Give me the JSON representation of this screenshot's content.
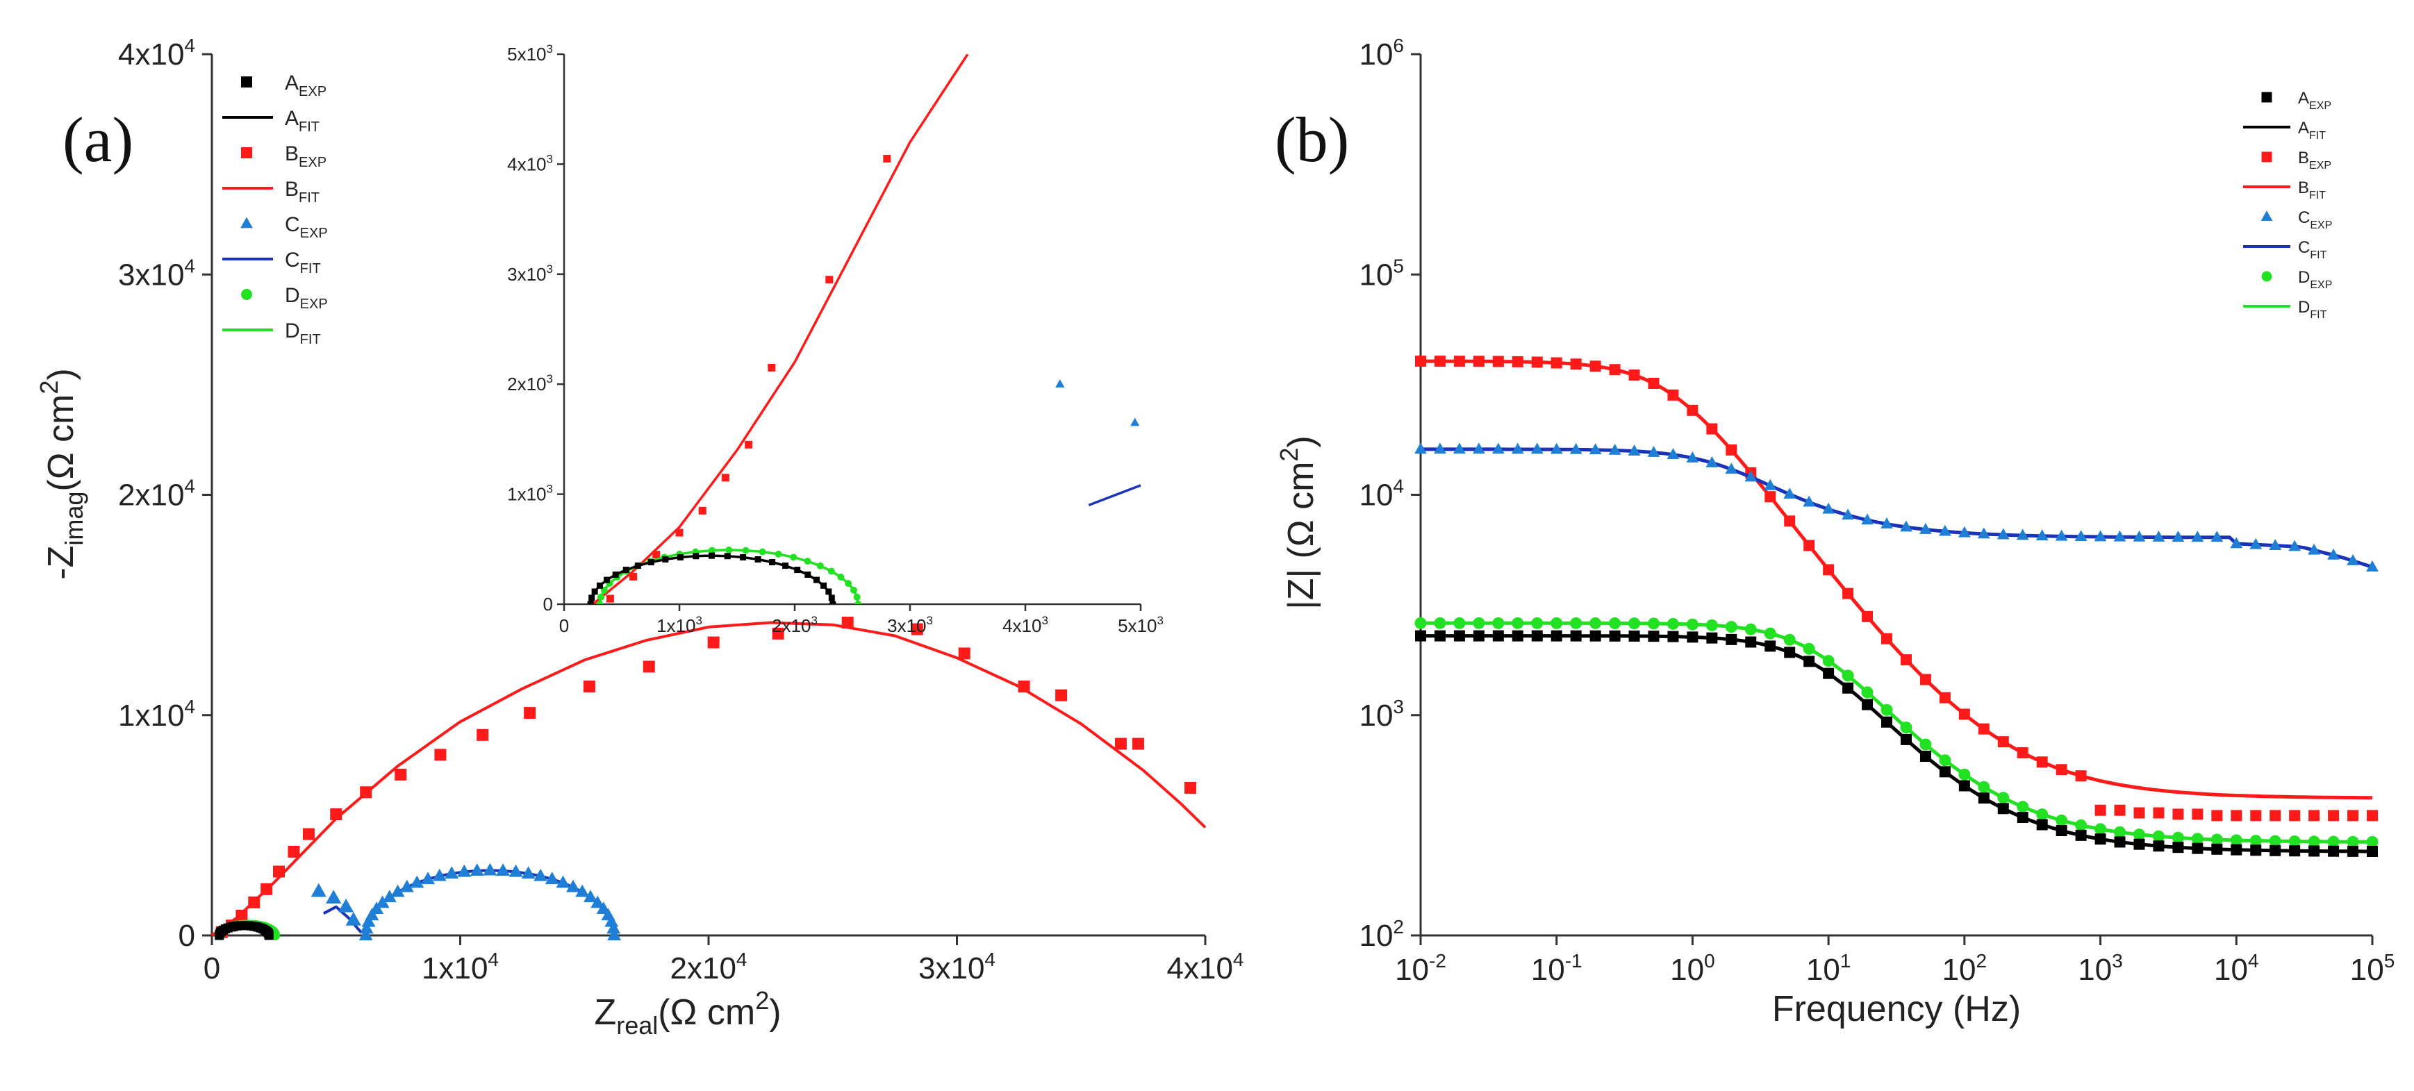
{
  "chart_data": [
    {
      "panel": "(a)",
      "type": "scatter",
      "title": "",
      "xlabel": {
        "base": "Z",
        "sub": "real",
        "rest": "(Ω  cm",
        "sup": "2",
        "close": ")"
      },
      "ylabel": {
        "base": "-Z",
        "sub": "imag",
        "rest": "(Ω  cm",
        "sup": "2",
        "close": ")"
      },
      "xlim": [
        0,
        40000
      ],
      "ylim": [
        0,
        40000
      ],
      "xticks": [
        {
          "v": 0,
          "base": "0",
          "sup": ""
        },
        {
          "v": 10000,
          "base": "1x10",
          "sup": "4"
        },
        {
          "v": 20000,
          "base": "2x10",
          "sup": "4"
        },
        {
          "v": 30000,
          "base": "3x10",
          "sup": "4"
        },
        {
          "v": 40000,
          "base": "4x10",
          "sup": "4"
        }
      ],
      "yticks": [
        {
          "v": 0,
          "base": "0",
          "sup": ""
        },
        {
          "v": 10000,
          "base": "1x10",
          "sup": "4"
        },
        {
          "v": 20000,
          "base": "2x10",
          "sup": "4"
        },
        {
          "v": 30000,
          "base": "3x10",
          "sup": "4"
        },
        {
          "v": 40000,
          "base": "4x10",
          "sup": "4"
        }
      ],
      "legend_position": "top-left",
      "legend": [
        {
          "base": "A",
          "sub": "EXP"
        },
        {
          "base": "A",
          "sub": "FIT"
        },
        {
          "base": "B",
          "sub": "EXP"
        },
        {
          "base": "B",
          "sub": "FIT"
        },
        {
          "base": "C",
          "sub": "EXP"
        },
        {
          "base": "C",
          "sub": "FIT"
        },
        {
          "base": "D",
          "sub": "EXP"
        },
        {
          "base": "D",
          "sub": "FIT"
        }
      ],
      "series": [
        {
          "name": "A",
          "color": "#000000",
          "marker": "square",
          "arc": {
            "center": 1300,
            "radius": 1000,
            "yscale": 0.45,
            "points": 22
          }
        },
        {
          "name": "B",
          "color": "#ff1a1a",
          "marker": "square",
          "exp": [
            [
              400,
              150
            ],
            [
              800,
              450
            ],
            [
              1200,
              900
            ],
            [
              1700,
              1500
            ],
            [
              2200,
              2100
            ],
            [
              2700,
              2900
            ],
            [
              3300,
              3800
            ],
            [
              3900,
              4600
            ],
            [
              5000,
              5500
            ],
            [
              6200,
              6500
            ],
            [
              7600,
              7300
            ],
            [
              9200,
              8200
            ],
            [
              10900,
              9100
            ],
            [
              12800,
              10100
            ],
            [
              15200,
              11300
            ],
            [
              17600,
              12200
            ],
            [
              20200,
              13300
            ],
            [
              22800,
              13700
            ],
            [
              25600,
              14200
            ],
            [
              28400,
              13900
            ],
            [
              30300,
              12800
            ],
            [
              32700,
              11300
            ],
            [
              34200,
              10900
            ],
            [
              36600,
              8700
            ],
            [
              37300,
              8700
            ],
            [
              39400,
              6700
            ]
          ],
          "fit": [
            [
              0,
              0
            ],
            [
              1000,
              800
            ],
            [
              2500,
              2400
            ],
            [
              5000,
              5300
            ],
            [
              7500,
              7700
            ],
            [
              10000,
              9700
            ],
            [
              12500,
              11200
            ],
            [
              15000,
              12500
            ],
            [
              17500,
              13400
            ],
            [
              20000,
              14000
            ],
            [
              22500,
              14200
            ],
            [
              25000,
              14100
            ],
            [
              27500,
              13600
            ],
            [
              30000,
              12600
            ],
            [
              32500,
              11300
            ],
            [
              35000,
              9600
            ],
            [
              37500,
              7500
            ],
            [
              39000,
              6000
            ],
            [
              40000,
              4900
            ]
          ]
        },
        {
          "name": "C",
          "color": "#1f7fd6",
          "marker": "triangle",
          "fitcolor": "#1a33b8",
          "exp": [
            [
              4300,
              2000
            ],
            [
              4900,
              1700
            ],
            [
              5400,
              1300
            ],
            [
              5700,
              700
            ]
          ],
          "fit": [
            [
              4500,
              1000
            ],
            [
              5000,
              1300
            ],
            [
              5500,
              800
            ],
            [
              6000,
              150
            ]
          ],
          "arc": {
            "center": 11200,
            "radius": 5000,
            "yscale": 0.59,
            "points": 30
          }
        },
        {
          "name": "D",
          "color": "#22e022",
          "marker": "circle",
          "fitcolor": "#22e022",
          "arc": {
            "center": 1450,
            "radius": 1100,
            "yscale": 0.45,
            "points": 22
          }
        }
      ],
      "inset": {
        "xlim": [
          0,
          5000
        ],
        "ylim": [
          0,
          5000
        ],
        "xticks": [
          {
            "v": 0,
            "base": "0",
            "sup": ""
          },
          {
            "v": 1000,
            "base": "1x10",
            "sup": "3"
          },
          {
            "v": 2000,
            "base": "2x10",
            "sup": "3"
          },
          {
            "v": 3000,
            "base": "3x10",
            "sup": "3"
          },
          {
            "v": 4000,
            "base": "4x10",
            "sup": "3"
          },
          {
            "v": 5000,
            "base": "5x10",
            "sup": "3"
          }
        ],
        "yticks": [
          {
            "v": 0,
            "base": "0",
            "sup": ""
          },
          {
            "v": 1000,
            "base": "1x10",
            "sup": "3"
          },
          {
            "v": 2000,
            "base": "2x10",
            "sup": "3"
          },
          {
            "v": 3000,
            "base": "3x10",
            "sup": "3"
          },
          {
            "v": 4000,
            "base": "4x10",
            "sup": "3"
          },
          {
            "v": 5000,
            "base": "5x10",
            "sup": "3"
          }
        ],
        "series": [
          {
            "name": "B",
            "color": "#ff1a1a",
            "exp": [
              [
                400,
                50
              ],
              [
                600,
                250
              ],
              [
                800,
                450
              ],
              [
                1000,
                650
              ],
              [
                1200,
                850
              ],
              [
                1400,
                1150
              ],
              [
                1600,
                1450
              ],
              [
                1800,
                2150
              ],
              [
                2300,
                2950
              ],
              [
                2800,
                4050
              ]
            ],
            "fit": [
              [
                250,
                0
              ],
              [
                600,
                300
              ],
              [
                1000,
                700
              ],
              [
                1500,
                1400
              ],
              [
                2000,
                2200
              ],
              [
                2500,
                3200
              ],
              [
                3000,
                4200
              ],
              [
                3500,
                5000
              ]
            ]
          },
          {
            "name": "A",
            "color": "#000000",
            "arc": {
              "center": 1280,
              "radius": 1050,
              "yscale": 0.42,
              "points": 24
            }
          },
          {
            "name": "D",
            "color": "#22e022",
            "arc": {
              "center": 1430,
              "radius": 1120,
              "yscale": 0.44,
              "points": 24
            }
          },
          {
            "name": "C",
            "color": "#1f7fd6",
            "fitcolor": "#1a33b8",
            "exp": [
              [
                4300,
                2000
              ],
              [
                4950,
                1650
              ]
            ],
            "fit": [
              [
                4550,
                900
              ],
              [
                5000,
                1080
              ]
            ]
          }
        ]
      }
    },
    {
      "panel": "(b)",
      "type": "line",
      "title": "",
      "xlabel": "Frequency (Hz)",
      "ylabel": {
        "base": "|Z| (Ω  cm",
        "sup": "2",
        "close": ")"
      },
      "xscale": "log",
      "yscale": "log",
      "xlim": [
        0.01,
        100000
      ],
      "ylim": [
        100,
        1000000
      ],
      "xticks": [
        {
          "v": 0.01,
          "base": "10",
          "sup": "-2"
        },
        {
          "v": 0.1,
          "base": "10",
          "sup": "-1"
        },
        {
          "v": 1,
          "base": "10",
          "sup": "0"
        },
        {
          "v": 10,
          "base": "10",
          "sup": "1"
        },
        {
          "v": 100,
          "base": "10",
          "sup": "2"
        },
        {
          "v": 1000,
          "base": "10",
          "sup": "3"
        },
        {
          "v": 10000,
          "base": "10",
          "sup": "4"
        },
        {
          "v": 100000,
          "base": "10",
          "sup": "5"
        }
      ],
      "yticks": [
        {
          "v": 100,
          "base": "10",
          "sup": "2"
        },
        {
          "v": 1000,
          "base": "10",
          "sup": "3"
        },
        {
          "v": 10000,
          "base": "10",
          "sup": "4"
        },
        {
          "v": 100000,
          "base": "10",
          "sup": "5"
        },
        {
          "v": 1000000,
          "base": "10",
          "sup": "6"
        }
      ],
      "legend_position": "top-right",
      "legend": [
        {
          "base": "A",
          "sub": "EXP"
        },
        {
          "base": "A",
          "sub": "FIT"
        },
        {
          "base": "B",
          "sub": "EXP"
        },
        {
          "base": "B",
          "sub": "FIT"
        },
        {
          "base": "C",
          "sub": "EXP"
        },
        {
          "base": "C",
          "sub": "FIT"
        },
        {
          "base": "D",
          "sub": "EXP"
        },
        {
          "base": "D",
          "sub": "FIT"
        }
      ],
      "series": [
        {
          "name": "A",
          "color": "#000000",
          "fitcolor": "#000000",
          "marker": "square",
          "Rs": 240,
          "Rp": 2050,
          "fc": 8
        },
        {
          "name": "B",
          "color": "#ff1a1a",
          "fitcolor": "#ff1a1a",
          "marker": "square",
          "Rs": 420,
          "Rp": 40000,
          "fc": 0.7,
          "exp_hf": [
            [
              1000,
              370
            ],
            [
              2000,
              360
            ],
            [
              4000,
              355
            ],
            [
              7000,
              350
            ],
            [
              15000,
              350
            ],
            [
              30000,
              350
            ],
            [
              60000,
              350
            ],
            [
              100000,
              350
            ]
          ]
        },
        {
          "name": "C",
          "color": "#1f7fd6",
          "fitcolor": "#1a33b8",
          "marker": "triangle",
          "Rs": 6400,
          "Rp": 9700,
          "fc": 1.8,
          "hf_droop": [
            [
              10000,
              6000
            ],
            [
              30000,
              5800
            ],
            [
              60000,
              5200
            ],
            [
              100000,
              4700
            ]
          ]
        },
        {
          "name": "D",
          "color": "#22e022",
          "fitcolor": "#22e022",
          "marker": "circle",
          "Rs": 265,
          "Rp": 2350,
          "fc": 8
        }
      ]
    }
  ],
  "panel_labels": {
    "a": "(a)",
    "b": "(b)"
  }
}
